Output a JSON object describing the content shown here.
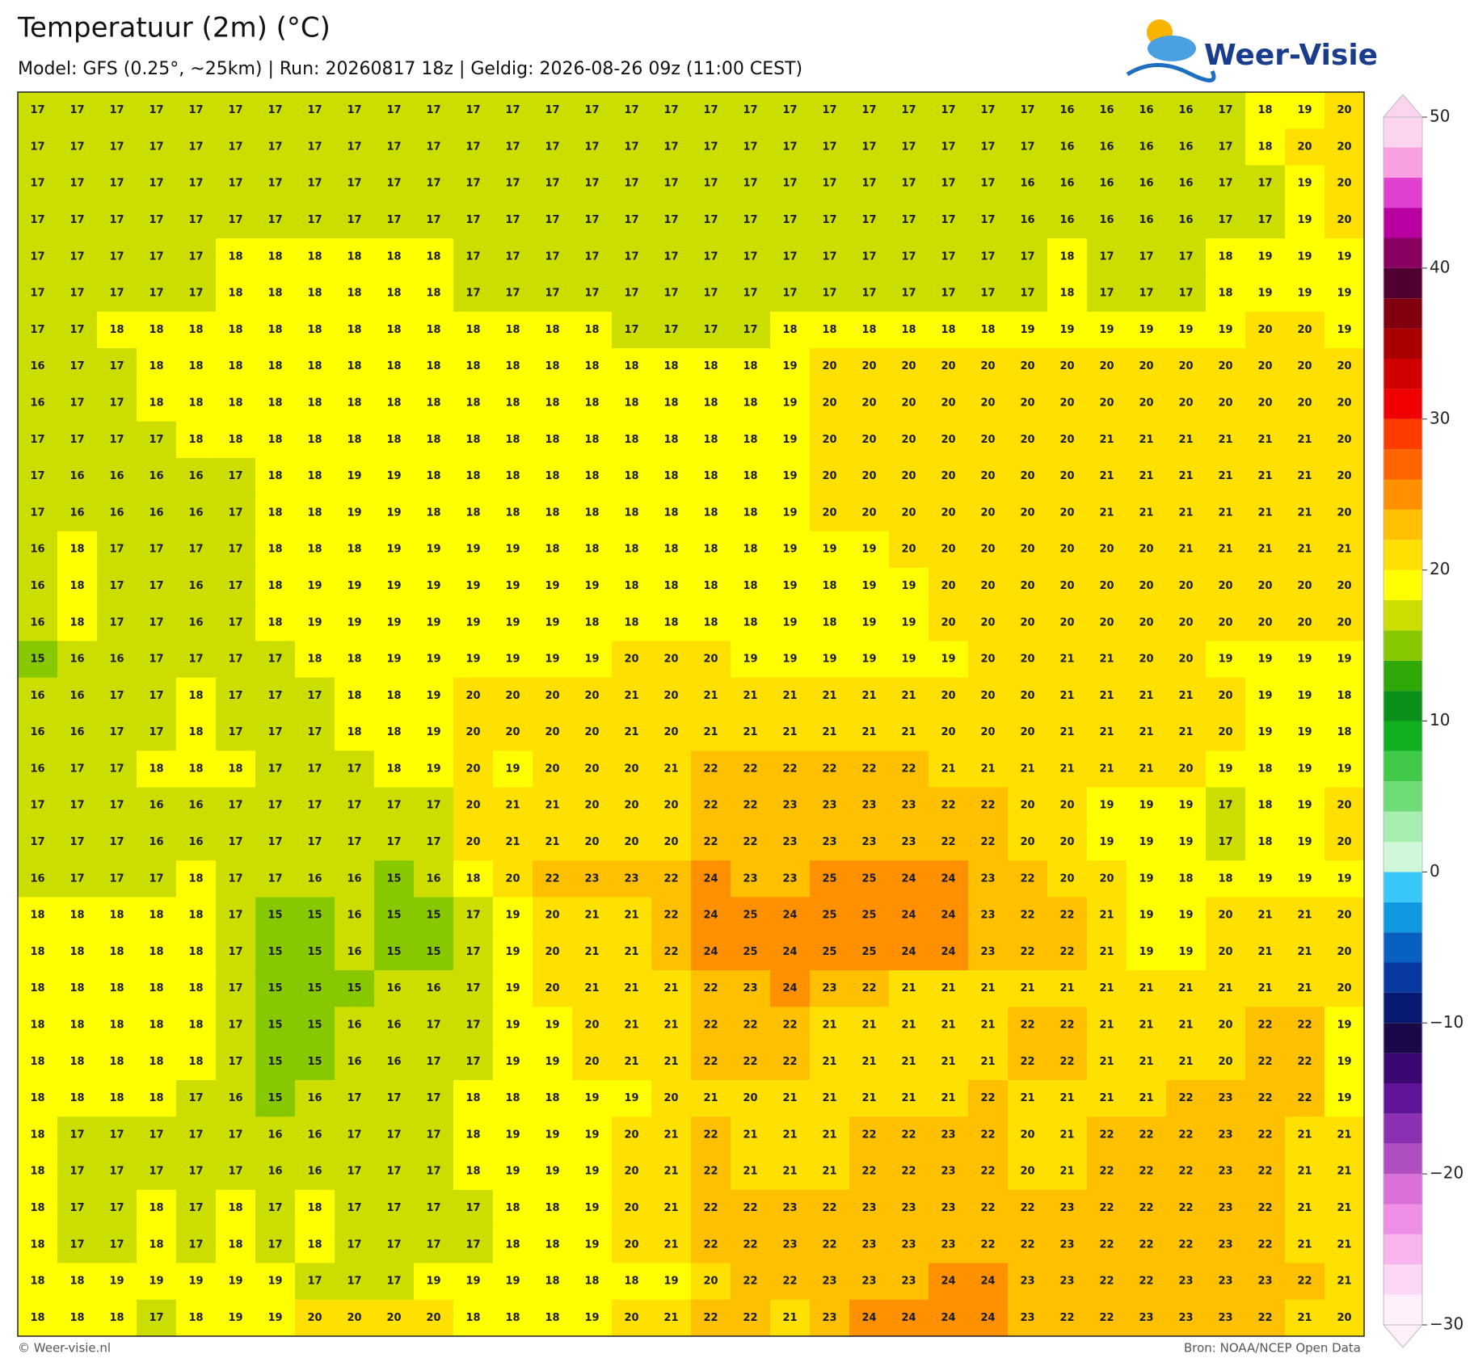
{
  "header": {
    "title": "Temperatuur (2m) (°C)",
    "subtitle": "Model: GFS (0.25°, ~25km)  |  Run: 20260817 18z  |  Geldig: 2026-08-26 09z (11:00 CEST)",
    "logo": "Weer-Visie"
  },
  "grid": {
    "rows": [
      [
        17,
        17,
        17,
        17,
        17,
        17,
        17,
        17,
        17,
        17,
        17,
        17,
        17,
        17,
        17,
        17,
        17,
        17,
        17,
        17,
        17,
        17,
        17,
        17,
        17,
        17,
        16,
        16,
        16,
        16,
        17,
        18,
        19,
        20
      ],
      [
        17,
        17,
        17,
        17,
        17,
        17,
        17,
        17,
        17,
        17,
        17,
        17,
        17,
        17,
        17,
        17,
        17,
        17,
        17,
        17,
        17,
        17,
        17,
        17,
        17,
        17,
        16,
        16,
        16,
        16,
        17,
        18,
        20,
        20
      ],
      [
        17,
        17,
        17,
        17,
        17,
        17,
        17,
        17,
        17,
        17,
        17,
        17,
        17,
        17,
        17,
        17,
        17,
        17,
        17,
        17,
        17,
        17,
        17,
        17,
        17,
        16,
        16,
        16,
        16,
        16,
        17,
        17,
        19,
        20
      ],
      [
        17,
        17,
        17,
        17,
        17,
        17,
        17,
        17,
        17,
        17,
        17,
        17,
        17,
        17,
        17,
        17,
        17,
        17,
        17,
        17,
        17,
        17,
        17,
        17,
        17,
        16,
        16,
        16,
        16,
        16,
        17,
        17,
        19,
        20
      ],
      [
        17,
        17,
        17,
        17,
        17,
        18,
        18,
        18,
        18,
        18,
        18,
        17,
        17,
        17,
        17,
        17,
        17,
        17,
        17,
        17,
        17,
        17,
        17,
        17,
        17,
        17,
        18,
        17,
        17,
        17,
        18,
        19,
        19,
        19
      ],
      [
        17,
        17,
        17,
        17,
        17,
        18,
        18,
        18,
        18,
        18,
        18,
        17,
        17,
        17,
        17,
        17,
        17,
        17,
        17,
        17,
        17,
        17,
        17,
        17,
        17,
        17,
        18,
        17,
        17,
        17,
        18,
        19,
        19,
        19
      ],
      [
        17,
        17,
        18,
        18,
        18,
        18,
        18,
        18,
        18,
        18,
        18,
        18,
        18,
        18,
        18,
        17,
        17,
        17,
        17,
        18,
        18,
        18,
        18,
        18,
        18,
        19,
        19,
        19,
        19,
        19,
        19,
        20,
        20,
        19
      ],
      [
        16,
        17,
        17,
        18,
        18,
        18,
        18,
        18,
        18,
        18,
        18,
        18,
        18,
        18,
        18,
        18,
        18,
        18,
        18,
        19,
        20,
        20,
        20,
        20,
        20,
        20,
        20,
        20,
        20,
        20,
        20,
        20,
        20,
        20
      ],
      [
        16,
        17,
        17,
        18,
        18,
        18,
        18,
        18,
        18,
        18,
        18,
        18,
        18,
        18,
        18,
        18,
        18,
        18,
        18,
        19,
        20,
        20,
        20,
        20,
        20,
        20,
        20,
        20,
        20,
        20,
        20,
        20,
        20,
        20
      ],
      [
        17,
        17,
        17,
        17,
        18,
        18,
        18,
        18,
        18,
        18,
        18,
        18,
        18,
        18,
        18,
        18,
        18,
        18,
        18,
        19,
        20,
        20,
        20,
        20,
        20,
        20,
        20,
        21,
        21,
        21,
        21,
        21,
        21,
        20
      ],
      [
        17,
        16,
        16,
        16,
        16,
        17,
        18,
        18,
        19,
        19,
        18,
        18,
        18,
        18,
        18,
        18,
        18,
        18,
        18,
        19,
        20,
        20,
        20,
        20,
        20,
        20,
        20,
        21,
        21,
        21,
        21,
        21,
        21,
        20
      ],
      [
        17,
        16,
        16,
        16,
        16,
        17,
        18,
        18,
        19,
        19,
        18,
        18,
        18,
        18,
        18,
        18,
        18,
        18,
        18,
        19,
        20,
        20,
        20,
        20,
        20,
        20,
        20,
        21,
        21,
        21,
        21,
        21,
        21,
        20
      ],
      [
        16,
        18,
        17,
        17,
        17,
        17,
        18,
        18,
        18,
        19,
        19,
        19,
        19,
        18,
        18,
        18,
        18,
        18,
        18,
        19,
        19,
        19,
        20,
        20,
        20,
        20,
        20,
        20,
        20,
        21,
        21,
        21,
        21,
        21
      ],
      [
        16,
        18,
        17,
        17,
        16,
        17,
        18,
        19,
        19,
        19,
        19,
        19,
        19,
        19,
        19,
        18,
        18,
        18,
        18,
        19,
        18,
        19,
        19,
        20,
        20,
        20,
        20,
        20,
        20,
        20,
        20,
        20,
        20,
        20
      ],
      [
        16,
        18,
        17,
        17,
        16,
        17,
        18,
        19,
        19,
        19,
        19,
        19,
        19,
        19,
        18,
        18,
        18,
        18,
        18,
        19,
        18,
        19,
        19,
        20,
        20,
        20,
        20,
        20,
        20,
        20,
        20,
        20,
        20,
        20
      ],
      [
        15,
        16,
        16,
        17,
        17,
        17,
        17,
        18,
        18,
        19,
        19,
        19,
        19,
        19,
        19,
        20,
        20,
        20,
        19,
        19,
        19,
        19,
        19,
        19,
        20,
        20,
        21,
        21,
        20,
        20,
        19,
        19,
        19,
        19
      ],
      [
        16,
        16,
        17,
        17,
        18,
        17,
        17,
        17,
        18,
        18,
        19,
        20,
        20,
        20,
        20,
        21,
        20,
        21,
        21,
        21,
        21,
        21,
        21,
        20,
        20,
        20,
        21,
        21,
        21,
        21,
        20,
        19,
        19,
        18
      ],
      [
        16,
        16,
        17,
        17,
        18,
        17,
        17,
        17,
        18,
        18,
        19,
        20,
        20,
        20,
        20,
        21,
        20,
        21,
        21,
        21,
        21,
        21,
        21,
        20,
        20,
        20,
        21,
        21,
        21,
        21,
        20,
        19,
        19,
        18
      ],
      [
        16,
        17,
        17,
        18,
        18,
        18,
        17,
        17,
        17,
        18,
        19,
        20,
        19,
        20,
        20,
        20,
        21,
        22,
        22,
        22,
        22,
        22,
        22,
        21,
        21,
        21,
        21,
        21,
        21,
        20,
        19,
        18,
        19,
        19
      ],
      [
        17,
        17,
        17,
        16,
        16,
        17,
        17,
        17,
        17,
        17,
        17,
        20,
        21,
        21,
        20,
        20,
        20,
        22,
        22,
        23,
        23,
        23,
        23,
        22,
        22,
        20,
        20,
        19,
        19,
        19,
        17,
        18,
        19,
        20
      ],
      [
        17,
        17,
        17,
        16,
        16,
        17,
        17,
        17,
        17,
        17,
        17,
        20,
        21,
        21,
        20,
        20,
        20,
        22,
        22,
        23,
        23,
        23,
        23,
        22,
        22,
        20,
        20,
        19,
        19,
        19,
        17,
        18,
        19,
        20
      ],
      [
        16,
        17,
        17,
        17,
        18,
        17,
        17,
        16,
        16,
        15,
        16,
        18,
        20,
        22,
        23,
        23,
        22,
        24,
        23,
        23,
        25,
        25,
        24,
        24,
        23,
        22,
        20,
        20,
        19,
        18,
        18,
        19,
        19,
        19
      ],
      [
        18,
        18,
        18,
        18,
        18,
        17,
        15,
        15,
        16,
        15,
        15,
        17,
        19,
        20,
        21,
        21,
        22,
        24,
        25,
        24,
        25,
        25,
        24,
        24,
        23,
        22,
        22,
        21,
        19,
        19,
        20,
        21,
        21,
        20
      ],
      [
        18,
        18,
        18,
        18,
        18,
        17,
        15,
        15,
        16,
        15,
        15,
        17,
        19,
        20,
        21,
        21,
        22,
        24,
        25,
        24,
        25,
        25,
        24,
        24,
        23,
        22,
        22,
        21,
        19,
        19,
        20,
        21,
        21,
        20
      ],
      [
        18,
        18,
        18,
        18,
        18,
        17,
        15,
        15,
        15,
        16,
        16,
        17,
        19,
        20,
        21,
        21,
        21,
        22,
        23,
        24,
        23,
        22,
        21,
        21,
        21,
        21,
        21,
        21,
        21,
        21,
        21,
        21,
        21,
        20
      ],
      [
        18,
        18,
        18,
        18,
        18,
        17,
        15,
        15,
        16,
        16,
        17,
        17,
        19,
        19,
        20,
        21,
        21,
        22,
        22,
        22,
        21,
        21,
        21,
        21,
        21,
        22,
        22,
        21,
        21,
        21,
        20,
        22,
        22,
        19
      ],
      [
        18,
        18,
        18,
        18,
        18,
        17,
        15,
        15,
        16,
        16,
        17,
        17,
        19,
        19,
        20,
        21,
        21,
        22,
        22,
        22,
        21,
        21,
        21,
        21,
        21,
        22,
        22,
        21,
        21,
        21,
        20,
        22,
        22,
        19
      ],
      [
        18,
        18,
        18,
        18,
        17,
        16,
        15,
        16,
        17,
        17,
        17,
        18,
        18,
        18,
        19,
        19,
        20,
        21,
        20,
        21,
        21,
        21,
        21,
        21,
        22,
        21,
        21,
        21,
        21,
        22,
        23,
        22,
        22,
        19
      ],
      [
        18,
        17,
        17,
        17,
        17,
        17,
        16,
        16,
        17,
        17,
        17,
        18,
        19,
        19,
        19,
        20,
        21,
        22,
        21,
        21,
        21,
        22,
        22,
        23,
        22,
        20,
        21,
        22,
        22,
        22,
        23,
        22,
        21,
        21
      ],
      [
        18,
        17,
        17,
        17,
        17,
        17,
        16,
        16,
        17,
        17,
        17,
        18,
        19,
        19,
        19,
        20,
        21,
        22,
        21,
        21,
        21,
        22,
        22,
        23,
        22,
        20,
        21,
        22,
        22,
        22,
        23,
        22,
        21,
        21
      ],
      [
        18,
        17,
        17,
        18,
        17,
        18,
        17,
        18,
        17,
        17,
        17,
        17,
        18,
        18,
        19,
        20,
        21,
        22,
        22,
        23,
        22,
        23,
        23,
        23,
        22,
        22,
        23,
        22,
        22,
        22,
        23,
        22,
        21,
        21
      ],
      [
        18,
        17,
        17,
        18,
        17,
        18,
        17,
        18,
        17,
        17,
        17,
        17,
        18,
        18,
        19,
        20,
        21,
        22,
        22,
        23,
        22,
        23,
        23,
        23,
        22,
        22,
        23,
        22,
        22,
        22,
        23,
        22,
        21,
        21
      ],
      [
        18,
        18,
        19,
        19,
        19,
        19,
        19,
        17,
        17,
        17,
        19,
        19,
        19,
        18,
        18,
        18,
        19,
        20,
        22,
        22,
        23,
        23,
        23,
        24,
        24,
        23,
        23,
        22,
        22,
        23,
        23,
        23,
        22,
        21
      ],
      [
        18,
        18,
        18,
        17,
        18,
        19,
        19,
        20,
        20,
        20,
        20,
        18,
        18,
        18,
        19,
        20,
        21,
        22,
        22,
        21,
        23,
        24,
        24,
        24,
        24,
        23,
        22,
        22,
        23,
        23,
        23,
        22,
        21,
        20
      ]
    ]
  },
  "colorbar": {
    "lim": [
      -30,
      50
    ],
    "ticks": [
      50,
      40,
      30,
      20,
      10,
      0,
      {
        "value": -10,
        "label": "−10"
      },
      {
        "value": -20,
        "label": "−20"
      },
      {
        "value": -30,
        "label": "−30"
      }
    ],
    "colors": [
      "#fdf0fb",
      "#fcd8f5",
      "#f8b4ee",
      "#ee90e6",
      "#d870d8",
      "#b050c0",
      "#8a30b0",
      "#601498",
      "#3a0870",
      "#1a0848",
      "#081a70",
      "#0838a0",
      "#0860c0",
      "#1098e0",
      "#38c8f8",
      "#d0f8d8",
      "#a8eeb0",
      "#70dc78",
      "#40c848",
      "#10b020",
      "#089018",
      "#30a808",
      "#88c800",
      "#ccdd00",
      "#ffff00",
      "#ffe000",
      "#ffc000",
      "#ff9000",
      "#ff6400",
      "#ff3c00",
      "#f00000",
      "#d00000",
      "#a80000",
      "#800010",
      "#500030",
      "#880060",
      "#b800a0",
      "#e040d0",
      "#f8a0e0",
      "#fcd4f0"
    ]
  },
  "footer": {
    "left": "© Weer-visie.nl",
    "right": "Bron: NOAA/NCEP Open Data"
  }
}
